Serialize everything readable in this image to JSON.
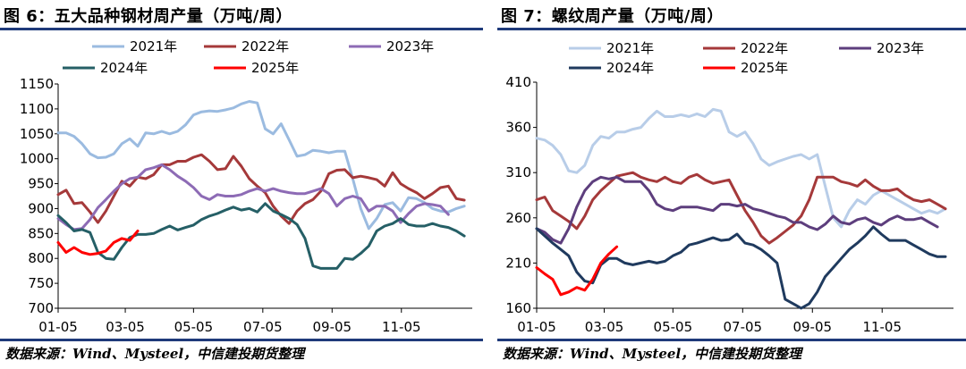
{
  "left": {
    "title": "图 6：五大品种钢材周产量（万吨/周）",
    "source": "数据来源：Wind、Mysteel，中信建投期货整理"
  },
  "right": {
    "title": "图 7：螺纹周产量（万吨/周）",
    "source": "数据来源：Wind、Mysteel，中信建投期货整理"
  },
  "chart_data": [
    {
      "type": "line",
      "title": "图 6：五大品种钢材周产量（万吨/周）",
      "x_ticks": [
        "01-05",
        "03-05",
        "05-05",
        "07-05",
        "09-05",
        "11-05"
      ],
      "x_tick_weeks": [
        0,
        8.43,
        17.0,
        25.7,
        34.4,
        43.1
      ],
      "x_range": [
        0,
        52
      ],
      "ylim": [
        700,
        1150
      ],
      "y_ticks": [
        700,
        750,
        800,
        850,
        900,
        950,
        1000,
        1050,
        1100,
        1150
      ],
      "legend": "top",
      "series": [
        {
          "name": "2021年",
          "color": "#9bbbe0",
          "values": [
            1052,
            1052,
            1045,
            1030,
            1010,
            1002,
            1003,
            1010,
            1030,
            1040,
            1025,
            1052,
            1050,
            1055,
            1050,
            1055,
            1068,
            1088,
            1094,
            1096,
            1095,
            1098,
            1102,
            1110,
            1115,
            1112,
            1060,
            1050,
            1070,
            1038,
            1005,
            1008,
            1017,
            1015,
            1012,
            1015,
            1015,
            960,
            900,
            860,
            880,
            908,
            912,
            895,
            922,
            920,
            912,
            900,
            895,
            893,
            900,
            905
          ]
        },
        {
          "name": "2022年",
          "color": "#a5393a",
          "values": [
            928,
            937,
            910,
            912,
            893,
            872,
            895,
            925,
            955,
            945,
            963,
            960,
            968,
            988,
            988,
            995,
            995,
            1003,
            1008,
            995,
            978,
            980,
            1005,
            985,
            960,
            945,
            932,
            905,
            885,
            870,
            895,
            910,
            918,
            935,
            970,
            977,
            978,
            962,
            965,
            962,
            958,
            945,
            972,
            950,
            940,
            932,
            920,
            930,
            942,
            945,
            920,
            917
          ]
        },
        {
          "name": "2023年",
          "color": "#8d6bb5",
          "values": [
            880,
            868,
            858,
            860,
            878,
            902,
            918,
            935,
            950,
            960,
            963,
            978,
            982,
            988,
            978,
            965,
            955,
            942,
            925,
            918,
            928,
            925,
            925,
            928,
            935,
            940,
            935,
            940,
            935,
            932,
            930,
            930,
            935,
            940,
            930,
            905,
            920,
            925,
            920,
            895,
            905,
            905,
            895,
            872,
            890,
            905,
            910,
            908,
            905,
            888
          ]
        },
        {
          "name": "2024年",
          "color": "#255f66",
          "values": [
            886,
            872,
            855,
            858,
            852,
            812,
            800,
            798,
            822,
            842,
            848,
            848,
            850,
            858,
            865,
            857,
            862,
            867,
            878,
            885,
            890,
            897,
            903,
            897,
            900,
            893,
            910,
            895,
            888,
            880,
            868,
            840,
            785,
            780,
            780,
            780,
            800,
            798,
            810,
            825,
            855,
            865,
            870,
            880,
            868,
            865,
            865,
            870,
            865,
            862,
            855,
            845
          ]
        },
        {
          "name": "2025年",
          "color": "#ff0000",
          "values": [
            832,
            812,
            822,
            812,
            808,
            810,
            815,
            832,
            840,
            836,
            855
          ]
        }
      ]
    },
    {
      "type": "line",
      "title": "图 7：螺纹周产量（万吨/周）",
      "x_ticks": [
        "01-05",
        "03-05",
        "05-05",
        "07-05",
        "09-05",
        "11-05"
      ],
      "x_tick_weeks": [
        0,
        8.43,
        17.0,
        25.7,
        34.4,
        43.1
      ],
      "x_range": [
        0,
        52
      ],
      "ylim": [
        160,
        410
      ],
      "y_ticks": [
        160,
        210,
        260,
        310,
        360,
        410
      ],
      "legend": "top",
      "series": [
        {
          "name": "2021年",
          "color": "#b8cde8",
          "values": [
            348,
            346,
            340,
            330,
            312,
            310,
            318,
            340,
            350,
            348,
            355,
            355,
            358,
            360,
            370,
            378,
            372,
            372,
            374,
            372,
            375,
            372,
            380,
            378,
            355,
            350,
            355,
            342,
            325,
            318,
            322,
            325,
            328,
            330,
            325,
            330,
            295,
            260,
            250,
            268,
            280,
            275,
            285,
            290,
            285,
            280,
            275,
            270,
            265,
            268,
            265,
            270
          ]
        },
        {
          "name": "2022年",
          "color": "#a5393a",
          "values": [
            280,
            283,
            268,
            262,
            256,
            248,
            262,
            280,
            290,
            298,
            306,
            308,
            310,
            305,
            302,
            300,
            305,
            300,
            298,
            305,
            308,
            302,
            298,
            300,
            302,
            285,
            268,
            255,
            240,
            232,
            238,
            245,
            252,
            262,
            280,
            305,
            305,
            305,
            300,
            298,
            295,
            302,
            295,
            290,
            290,
            292,
            285,
            280,
            278,
            280,
            275,
            270
          ]
        },
        {
          "name": "2023年",
          "color": "#5d3e7d",
          "values": [
            248,
            244,
            236,
            232,
            248,
            272,
            290,
            300,
            305,
            303,
            305,
            300,
            300,
            300,
            290,
            275,
            270,
            268,
            272,
            272,
            272,
            270,
            268,
            275,
            275,
            273,
            275,
            270,
            268,
            265,
            262,
            260,
            255,
            255,
            250,
            247,
            253,
            262,
            255,
            253,
            258,
            260,
            255,
            252,
            258,
            262,
            258,
            258,
            260,
            255,
            250
          ]
        },
        {
          "name": "2024年",
          "color": "#1f3a5e",
          "values": [
            248,
            240,
            232,
            225,
            218,
            200,
            190,
            188,
            208,
            215,
            215,
            210,
            208,
            210,
            212,
            210,
            212,
            218,
            222,
            230,
            232,
            235,
            238,
            235,
            236,
            242,
            232,
            230,
            225,
            218,
            210,
            170,
            165,
            160,
            165,
            178,
            195,
            205,
            215,
            225,
            232,
            240,
            250,
            242,
            235,
            235,
            235,
            230,
            225,
            220,
            217,
            217
          ]
        },
        {
          "name": "2025年",
          "color": "#ff0000",
          "values": [
            205,
            198,
            192,
            175,
            178,
            183,
            180,
            192,
            210,
            220,
            228
          ]
        }
      ]
    }
  ]
}
